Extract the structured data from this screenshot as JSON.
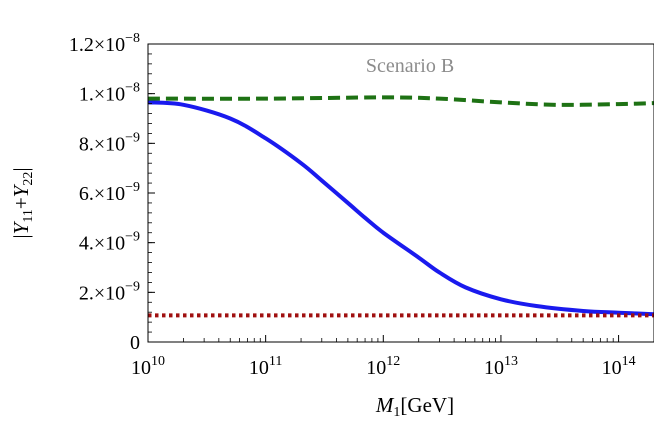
{
  "chart_data": {
    "type": "line",
    "xscale": "log",
    "yscale": "linear",
    "xlim": [
      10000000000.0,
      200000000000000.0
    ],
    "ylim": [
      0,
      1.2e-08
    ],
    "xticks": [
      {
        "value": 10000000000.0,
        "base": "10",
        "exp": "10"
      },
      {
        "value": 100000000000.0,
        "base": "10",
        "exp": "11"
      },
      {
        "value": 1000000000000.0,
        "base": "10",
        "exp": "12"
      },
      {
        "value": 10000000000000.0,
        "base": "10",
        "exp": "13"
      },
      {
        "value": 100000000000000.0,
        "base": "10",
        "exp": "14"
      }
    ],
    "yticks": [
      {
        "value": 0,
        "mant": "0",
        "exp": ""
      },
      {
        "value": 2e-09,
        "mant": "2.×10",
        "exp": "−9"
      },
      {
        "value": 4e-09,
        "mant": "4.×10",
        "exp": "−9"
      },
      {
        "value": 6e-09,
        "mant": "6.×10",
        "exp": "−9"
      },
      {
        "value": 8e-09,
        "mant": "8.×10",
        "exp": "−9"
      },
      {
        "value": 1e-08,
        "mant": "1.×10",
        "exp": "−8"
      },
      {
        "value": 1.2e-08,
        "mant": "1.2×10",
        "exp": "−8"
      }
    ],
    "xlabel": {
      "sym": "M",
      "sub": "1",
      "rest": "[GeV]"
    },
    "ylabel": "|Y11+Y22|",
    "annotation": "Scenario B",
    "grid": false,
    "series": [
      {
        "color": "#1a1aee",
        "style": "solid",
        "points": [
          [
            10000000000.0,
            9.65e-09
          ],
          [
            20000000000.0,
            9.55e-09
          ],
          [
            50000000000.0,
            9e-09
          ],
          [
            100000000000.0,
            8.2e-09
          ],
          [
            200000000000.0,
            7.2e-09
          ],
          [
            300000000000.0,
            6.5e-09
          ],
          [
            500000000000.0,
            5.6e-09
          ],
          [
            700000000000.0,
            5e-09
          ],
          [
            1000000000000.0,
            4.4e-09
          ],
          [
            2000000000000.0,
            3.4e-09
          ],
          [
            3000000000000.0,
            2.8e-09
          ],
          [
            5000000000000.0,
            2.2e-09
          ],
          [
            10000000000000.0,
            1.72e-09
          ],
          [
            20000000000000.0,
            1.45e-09
          ],
          [
            50000000000000.0,
            1.25e-09
          ],
          [
            100000000000000.0,
            1.18e-09
          ],
          [
            200000000000000.0,
            1.12e-09
          ]
        ]
      },
      {
        "color": "#1e7214",
        "style": "dashed",
        "points": [
          [
            10000000000.0,
            9.8e-09
          ],
          [
            100000000000.0,
            9.8e-09
          ],
          [
            1000000000000.0,
            9.85e-09
          ],
          [
            3000000000000.0,
            9.8e-09
          ],
          [
            10000000000000.0,
            9.65e-09
          ],
          [
            30000000000000.0,
            9.55e-09
          ],
          [
            100000000000000.0,
            9.58e-09
          ],
          [
            200000000000000.0,
            9.62e-09
          ]
        ]
      },
      {
        "color": "#a01010",
        "style": "dotted",
        "points": [
          [
            10000000000.0,
            1.07e-09
          ],
          [
            200000000000000.0,
            1.07e-09
          ]
        ]
      }
    ]
  }
}
